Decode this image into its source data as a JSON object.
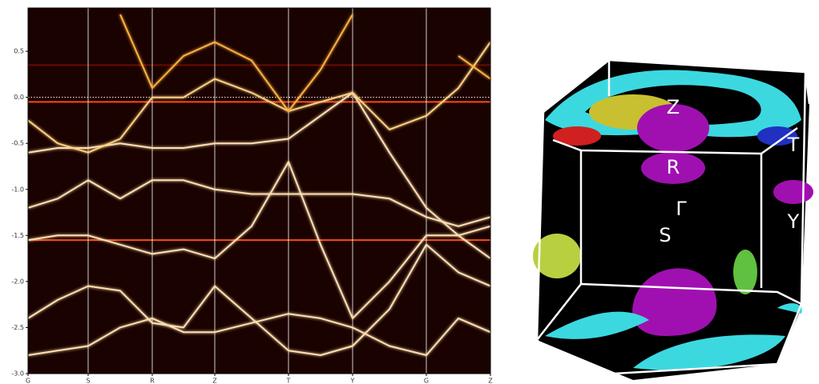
{
  "chart_data": {
    "type": "line",
    "x": [
      0,
      37,
      75,
      115,
      155,
      194,
      233,
      279,
      325,
      365,
      405,
      451,
      497,
      537,
      577
    ],
    "xlim": [
      0,
      577
    ],
    "xticks": [
      {
        "value": 0,
        "label": "G"
      },
      {
        "value": 75,
        "label": "S"
      },
      {
        "value": 155,
        "label": "R"
      },
      {
        "value": 233,
        "label": "Z"
      },
      {
        "value": 325,
        "label": "T"
      },
      {
        "value": 405,
        "label": "Y"
      },
      {
        "value": 497,
        "label": "G"
      },
      {
        "value": 577,
        "label": "Z"
      }
    ],
    "ylim": [
      -3.0,
      0.97
    ],
    "yticks": [
      {
        "value": -3,
        "label": "-3.0"
      },
      -2.5,
      {
        "value": -2,
        "label": "-2.0"
      },
      -1.5,
      {
        "value": -1,
        "label": "-1.0"
      },
      -0.5,
      {
        "value": 0,
        "label": "0.0"
      },
      0.5
    ],
    "grid": true,
    "background": "#1a0200",
    "hlines": [
      {
        "value": 0.35,
        "color": "#6a0c00"
      },
      {
        "value": -0.05,
        "color": "#ff4a10"
      },
      {
        "value": -1.55,
        "color": "#ff4a10"
      },
      {
        "value": 0,
        "color": "#ffffff",
        "style": "dotted"
      }
    ],
    "series": [
      {
        "color": "#ffe0b0",
        "values": [
          -2.4,
          -2.2,
          -2.05,
          -2.1,
          -2.45,
          -2.5,
          -2.05,
          -2.4,
          -2.75,
          -2.8,
          -2.7,
          -2.3,
          -1.6,
          -1.9,
          -2.05
        ]
      },
      {
        "color": "#ffe0b0",
        "values": [
          -2.8,
          -2.75,
          -2.7,
          -2.5,
          -2.4,
          -2.55,
          -2.55,
          -2.45,
          -2.35,
          -2.4,
          -2.5,
          -2.7,
          -2.8,
          -2.4,
          -2.55
        ]
      },
      {
        "color": "#ffe0b0",
        "values": [
          -1.55,
          -1.5,
          -1.5,
          -1.6,
          -1.7,
          -1.65,
          -1.75,
          -1.4,
          -0.7,
          -1.6,
          -2.4,
          -2.0,
          -1.5,
          -1.5,
          -1.75
        ]
      },
      {
        "color": "#ffe0b0",
        "values": [
          -1.2,
          -1.1,
          -0.9,
          -1.1,
          -0.9,
          -0.9,
          -1.0,
          -1.05,
          -1.05,
          -1.05,
          -1.05,
          -1.1,
          -1.3,
          -1.4,
          -1.3
        ]
      },
      {
        "color": "#ffe0b0",
        "values": [
          -0.6,
          -0.55,
          -0.55,
          -0.5,
          -0.55,
          -0.55,
          -0.5,
          -0.5,
          -0.45,
          -0.2,
          0.05,
          -0.6,
          -1.2,
          -1.5,
          -1.4
        ]
      },
      {
        "color": "#ffd080",
        "values": [
          -0.25,
          -0.5,
          -0.6,
          -0.45,
          0.0,
          0.0,
          0.2,
          0.05,
          -0.15,
          -0.05,
          0.05,
          -0.35,
          -0.2,
          0.1,
          0.6
        ]
      },
      {
        "color": "#ffb040",
        "values": [
          null,
          null,
          null,
          0.9,
          0.1,
          0.45,
          0.6,
          0.4,
          -0.15,
          0.3,
          0.9,
          null,
          null,
          0.45,
          0.2
        ]
      }
    ]
  },
  "fermi_surface": {
    "labels": [
      "Z",
      "R",
      "T",
      "Γ",
      "S",
      "Y"
    ]
  }
}
